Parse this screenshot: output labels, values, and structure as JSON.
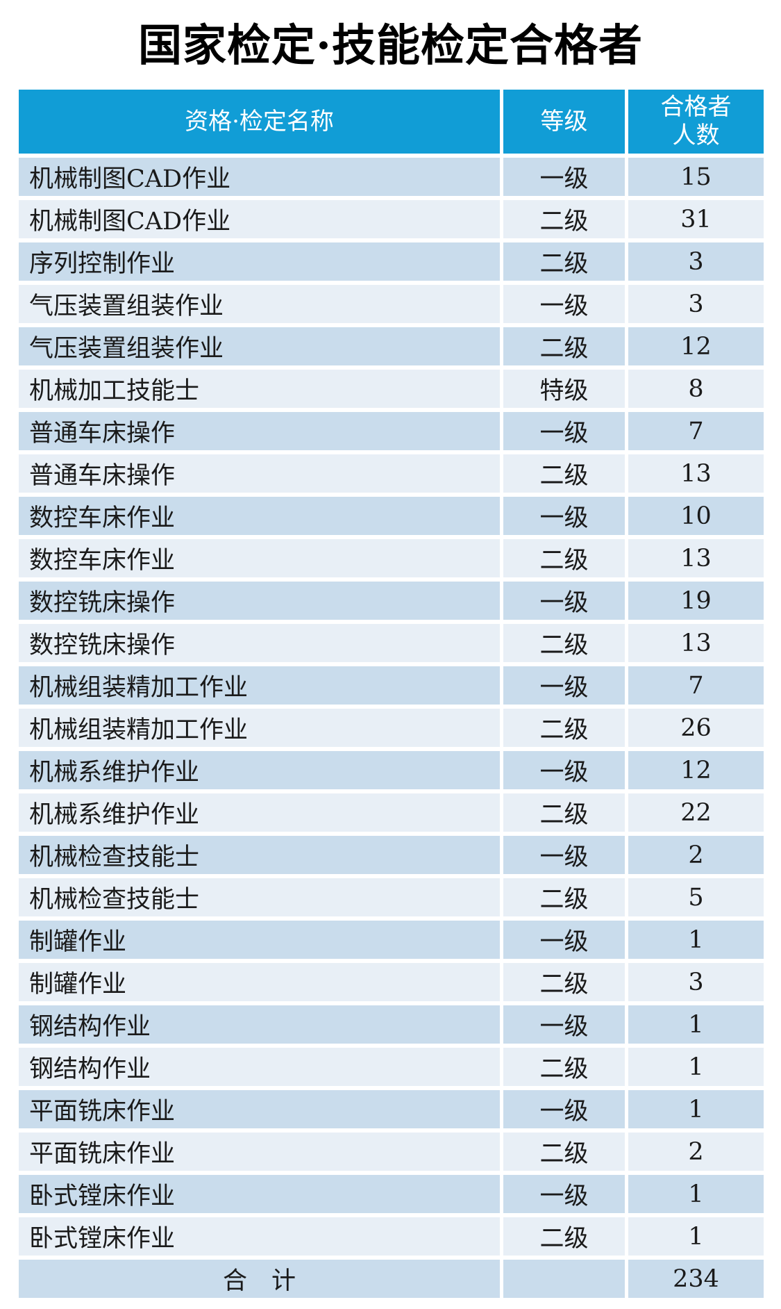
{
  "title": "国家检定·技能检定合格者",
  "colors": {
    "header_bg": "#119dd6",
    "header_text": "#ffffff",
    "row_dark": "#c9dcec",
    "row_light": "#e8eff6",
    "body_text": "#1a1a1a"
  },
  "table": {
    "headers": {
      "name": "资格·检定名称",
      "grade": "等级",
      "count_line1": "合格者",
      "count_line2": "人数"
    },
    "rows": [
      {
        "name": "机械制图CAD作业",
        "grade": "一级",
        "count": "15"
      },
      {
        "name": "机械制图CAD作业",
        "grade": "二级",
        "count": "31"
      },
      {
        "name": "序列控制作业",
        "grade": "二级",
        "count": "3"
      },
      {
        "name": "气压装置组装作业",
        "grade": "一级",
        "count": "3"
      },
      {
        "name": "气压装置组装作业",
        "grade": "二级",
        "count": "12"
      },
      {
        "name": "机械加工技能士",
        "grade": "特级",
        "count": "8"
      },
      {
        "name": "普通车床操作",
        "grade": "一级",
        "count": "7"
      },
      {
        "name": "普通车床操作",
        "grade": "二级",
        "count": "13"
      },
      {
        "name": "数控车床作业",
        "grade": "一级",
        "count": "10"
      },
      {
        "name": "数控车床作业",
        "grade": "二级",
        "count": "13"
      },
      {
        "name": "数控铣床操作",
        "grade": "一级",
        "count": "19"
      },
      {
        "name": "数控铣床操作",
        "grade": "二级",
        "count": "13"
      },
      {
        "name": "机械组装精加工作业",
        "grade": "一级",
        "count": "7"
      },
      {
        "name": "机械组装精加工作业",
        "grade": "二级",
        "count": "26"
      },
      {
        "name": "机械系维护作业",
        "grade": "一级",
        "count": "12"
      },
      {
        "name": "机械系维护作业",
        "grade": "二级",
        "count": "22"
      },
      {
        "name": "机械检查技能士",
        "grade": "一级",
        "count": "2"
      },
      {
        "name": "机械检查技能士",
        "grade": "二级",
        "count": "5"
      },
      {
        "name": "制罐作业",
        "grade": "一级",
        "count": "1"
      },
      {
        "name": "制罐作业",
        "grade": "二级",
        "count": "3"
      },
      {
        "name": "钢结构作业",
        "grade": "一级",
        "count": "1"
      },
      {
        "name": "钢结构作业",
        "grade": "二级",
        "count": "1"
      },
      {
        "name": "平面铣床作业",
        "grade": "一级",
        "count": "1"
      },
      {
        "name": "平面铣床作业",
        "grade": "二级",
        "count": "2"
      },
      {
        "name": "卧式镗床作业",
        "grade": "一级",
        "count": "1"
      },
      {
        "name": "卧式镗床作业",
        "grade": "二级",
        "count": "1"
      }
    ],
    "total": {
      "label": "合　计",
      "grade": "",
      "count": "234"
    }
  }
}
